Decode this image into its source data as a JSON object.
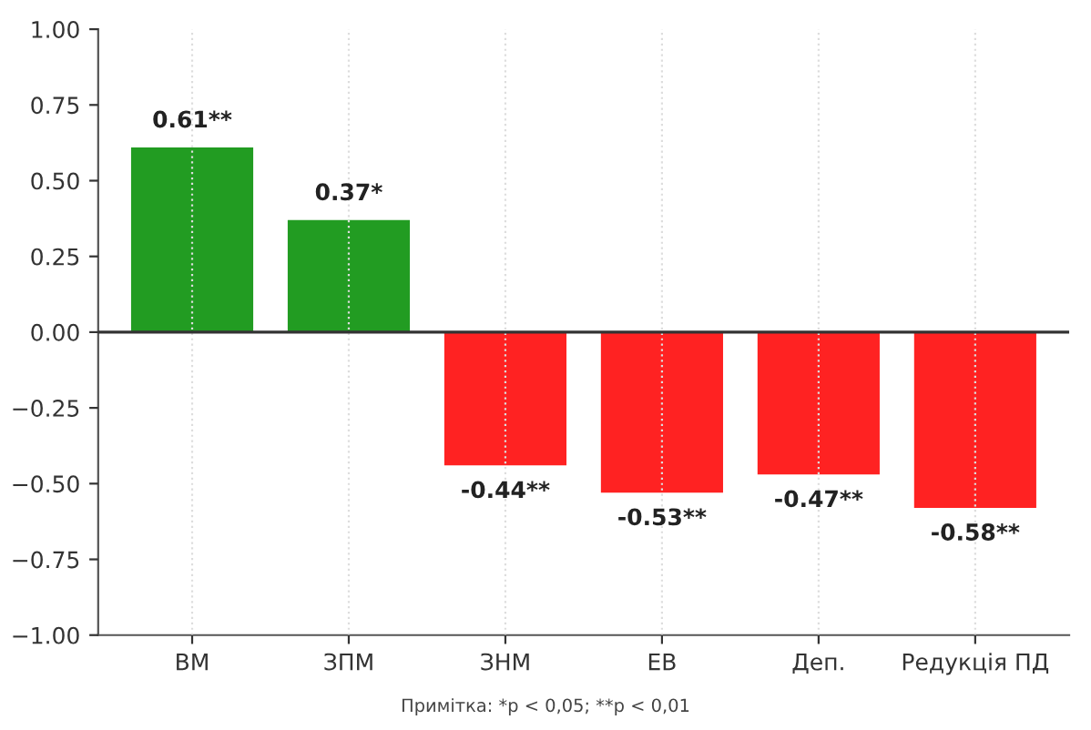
{
  "chart_data": {
    "type": "bar",
    "categories": [
      "ВМ",
      "ЗПМ",
      "ЗНМ",
      "ЕВ",
      "Деп.",
      "Редукція ПД"
    ],
    "values": [
      0.61,
      0.37,
      -0.44,
      -0.53,
      -0.47,
      -0.58
    ],
    "colors": [
      "#229c22",
      "#229c22",
      "#ff2222",
      "#ff2222",
      "#ff2222",
      "#ff2222"
    ],
    "value_labels": [
      "0.61**",
      "0.37*",
      "-0.44**",
      "-0.53**",
      "-0.47**",
      "-0.58**"
    ],
    "ylim": [
      -1.0,
      1.0
    ],
    "yticks": [
      {
        "value": -1.0,
        "label": "−1.00"
      },
      {
        "value": -0.75,
        "label": "−0.75"
      },
      {
        "value": -0.5,
        "label": "−0.50"
      },
      {
        "value": -0.25,
        "label": "−0.25"
      },
      {
        "value": 0.0,
        "label": "0.00"
      },
      {
        "value": 0.25,
        "label": "0.25"
      },
      {
        "value": 0.5,
        "label": "0.50"
      },
      {
        "value": 0.75,
        "label": "0.75"
      },
      {
        "value": 1.0,
        "label": "1.00"
      }
    ],
    "ref_lines": [
      {
        "axis": "y",
        "value": 0,
        "color": "#333333"
      }
    ],
    "grid": "x",
    "annotations": [
      "Примітка: *p < 0,05; **p < 0,01"
    ]
  }
}
